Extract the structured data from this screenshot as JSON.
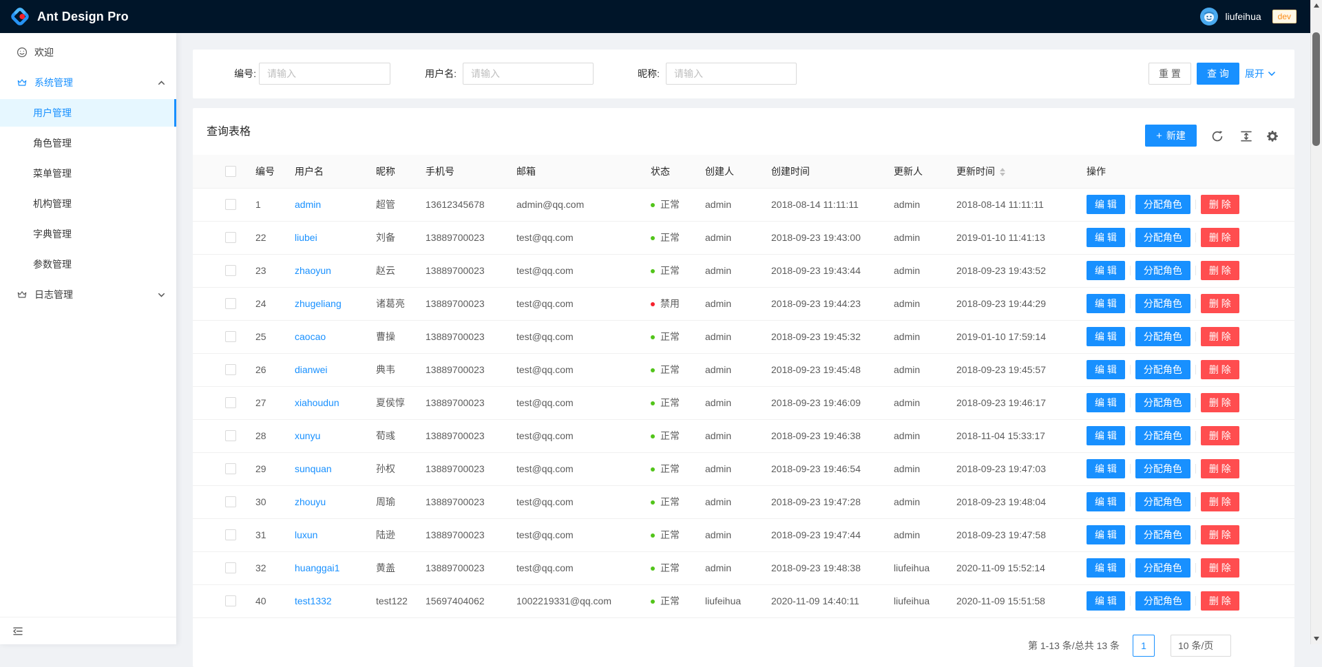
{
  "header": {
    "app_title": "Ant Design Pro",
    "username": "liufeihua",
    "env_badge": "dev"
  },
  "sidebar": {
    "items": [
      {
        "label": "欢迎",
        "icon": "smile-icon"
      },
      {
        "label": "系统管理",
        "icon": "crown-icon",
        "expanded": true,
        "children": [
          {
            "label": "用户管理",
            "selected": true
          },
          {
            "label": "角色管理"
          },
          {
            "label": "菜单管理"
          },
          {
            "label": "机构管理"
          },
          {
            "label": "字典管理"
          },
          {
            "label": "参数管理"
          }
        ]
      },
      {
        "label": "日志管理",
        "icon": "crown-icon",
        "expanded": false
      }
    ]
  },
  "search": {
    "fields": [
      {
        "label": "编号:",
        "placeholder": "请输入"
      },
      {
        "label": "用户名:",
        "placeholder": "请输入"
      },
      {
        "label": "昵称:",
        "placeholder": "请输入"
      }
    ],
    "reset_label": "重 置",
    "query_label": "查 询",
    "expand_label": "展开"
  },
  "table": {
    "title": "查询表格",
    "new_label": "新建",
    "toolbar_icons": [
      "reload-icon",
      "column-height-icon",
      "setting-gear-icon"
    ],
    "columns": [
      {
        "label": "编号"
      },
      {
        "label": "用户名"
      },
      {
        "label": "昵称"
      },
      {
        "label": "手机号"
      },
      {
        "label": "邮箱"
      },
      {
        "label": "状态"
      },
      {
        "label": "创建人"
      },
      {
        "label": "创建时间"
      },
      {
        "label": "更新人"
      },
      {
        "label": "更新时间",
        "sortable": true
      },
      {
        "label": "操作"
      }
    ],
    "actions": {
      "edit": "编 辑",
      "assign": "分配角色",
      "delete": "删 除"
    },
    "rows": [
      {
        "id": "1",
        "username": "admin",
        "nickname": "超管",
        "phone": "13612345678",
        "email": "admin@qq.com",
        "status": "正常",
        "status_type": "ok",
        "creator": "admin",
        "ctime": "2018-08-14 11:11:11",
        "updater": "admin",
        "utime": "2018-08-14 11:11:11"
      },
      {
        "id": "22",
        "username": "liubei",
        "nickname": "刘备",
        "phone": "13889700023",
        "email": "test@qq.com",
        "status": "正常",
        "status_type": "ok",
        "creator": "admin",
        "ctime": "2018-09-23 19:43:00",
        "updater": "admin",
        "utime": "2019-01-10 11:41:13"
      },
      {
        "id": "23",
        "username": "zhaoyun",
        "nickname": "赵云",
        "phone": "13889700023",
        "email": "test@qq.com",
        "status": "正常",
        "status_type": "ok",
        "creator": "admin",
        "ctime": "2018-09-23 19:43:44",
        "updater": "admin",
        "utime": "2018-09-23 19:43:52"
      },
      {
        "id": "24",
        "username": "zhugeliang",
        "nickname": "诸葛亮",
        "phone": "13889700023",
        "email": "test@qq.com",
        "status": "禁用",
        "status_type": "disabled",
        "creator": "admin",
        "ctime": "2018-09-23 19:44:23",
        "updater": "admin",
        "utime": "2018-09-23 19:44:29"
      },
      {
        "id": "25",
        "username": "caocao",
        "nickname": "曹操",
        "phone": "13889700023",
        "email": "test@qq.com",
        "status": "正常",
        "status_type": "ok",
        "creator": "admin",
        "ctime": "2018-09-23 19:45:32",
        "updater": "admin",
        "utime": "2019-01-10 17:59:14"
      },
      {
        "id": "26",
        "username": "dianwei",
        "nickname": "典韦",
        "phone": "13889700023",
        "email": "test@qq.com",
        "status": "正常",
        "status_type": "ok",
        "creator": "admin",
        "ctime": "2018-09-23 19:45:48",
        "updater": "admin",
        "utime": "2018-09-23 19:45:57"
      },
      {
        "id": "27",
        "username": "xiahoudun",
        "nickname": "夏侯惇",
        "phone": "13889700023",
        "email": "test@qq.com",
        "status": "正常",
        "status_type": "ok",
        "creator": "admin",
        "ctime": "2018-09-23 19:46:09",
        "updater": "admin",
        "utime": "2018-09-23 19:46:17"
      },
      {
        "id": "28",
        "username": "xunyu",
        "nickname": "荀彧",
        "phone": "13889700023",
        "email": "test@qq.com",
        "status": "正常",
        "status_type": "ok",
        "creator": "admin",
        "ctime": "2018-09-23 19:46:38",
        "updater": "admin",
        "utime": "2018-11-04 15:33:17"
      },
      {
        "id": "29",
        "username": "sunquan",
        "nickname": "孙权",
        "phone": "13889700023",
        "email": "test@qq.com",
        "status": "正常",
        "status_type": "ok",
        "creator": "admin",
        "ctime": "2018-09-23 19:46:54",
        "updater": "admin",
        "utime": "2018-09-23 19:47:03"
      },
      {
        "id": "30",
        "username": "zhouyu",
        "nickname": "周瑜",
        "phone": "13889700023",
        "email": "test@qq.com",
        "status": "正常",
        "status_type": "ok",
        "creator": "admin",
        "ctime": "2018-09-23 19:47:28",
        "updater": "admin",
        "utime": "2018-09-23 19:48:04"
      },
      {
        "id": "31",
        "username": "luxun",
        "nickname": "陆逊",
        "phone": "13889700023",
        "email": "test@qq.com",
        "status": "正常",
        "status_type": "ok",
        "creator": "admin",
        "ctime": "2018-09-23 19:47:44",
        "updater": "admin",
        "utime": "2018-09-23 19:47:58"
      },
      {
        "id": "32",
        "username": "huanggai1",
        "nickname": "黄盖",
        "phone": "13889700023",
        "email": "test@qq.com",
        "status": "正常",
        "status_type": "ok",
        "creator": "admin",
        "ctime": "2018-09-23 19:48:38",
        "updater": "liufeihua",
        "utime": "2020-11-09 15:52:14"
      },
      {
        "id": "40",
        "username": "test1332",
        "nickname": "test122",
        "phone": "15697404062",
        "email": "1002219331@qq.com",
        "status": "正常",
        "status_type": "ok",
        "creator": "liufeihua",
        "ctime": "2020-11-09 14:40:11",
        "updater": "liufeihua",
        "utime": "2020-11-09 15:51:58"
      }
    ]
  },
  "pagination": {
    "total_text": "第 1-13 条/总共 13 条",
    "current_page": "1",
    "page_size": "10 条/页"
  },
  "colors": {
    "primary": "#1890ff",
    "danger": "#ff4d4f",
    "success_dot": "#52c41a",
    "error_dot": "#f5222d",
    "header_bg": "#001529",
    "selected_menu_bg": "#e6f7ff",
    "tag_bg": "#fff7e6",
    "tag_border": "#ffd591",
    "tag_text": "#fa8c16"
  }
}
